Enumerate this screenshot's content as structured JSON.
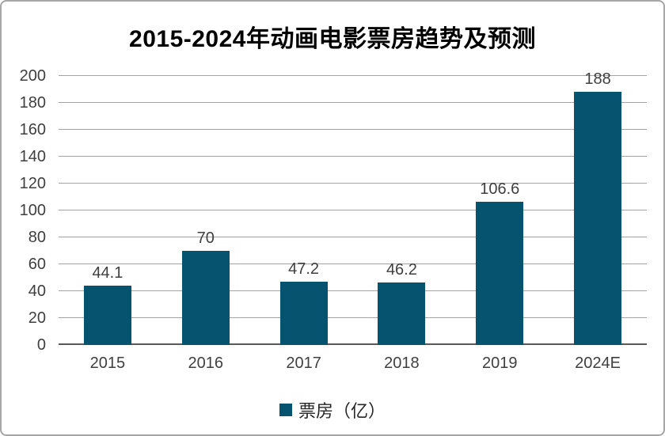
{
  "chart_data": {
    "type": "bar",
    "title": "2015-2024年动画电影票房趋势及预测",
    "categories": [
      "2015",
      "2016",
      "2017",
      "2018",
      "2019",
      "2024E"
    ],
    "series": [
      {
        "name": "票房（亿）",
        "values": [
          44.1,
          70,
          47.2,
          46.2,
          106.6,
          188
        ]
      }
    ],
    "value_labels": [
      "44.1",
      "70",
      "47.2",
      "46.2",
      "106.6",
      "188"
    ],
    "xlabel": "",
    "ylabel": "",
    "ylim": [
      0,
      200
    ],
    "yticks": [
      0,
      20,
      40,
      60,
      80,
      100,
      120,
      140,
      160,
      180,
      200
    ],
    "grid": true,
    "legend_position": "bottom",
    "legend": [
      {
        "label": "票房（亿）",
        "swatch_color": "#05536E"
      }
    ]
  },
  "colors": {
    "bar": "#05536E",
    "gridline": "#a3a3a3",
    "axis_line": "#595959",
    "tick_text": "#3f3f3f",
    "legend_text": "#262626",
    "title_text": "#000000",
    "border": "#a6a6a6",
    "background": "#ffffff"
  }
}
